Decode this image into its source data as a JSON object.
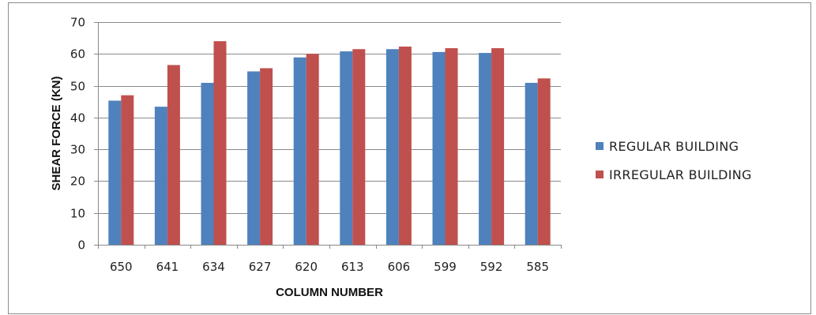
{
  "chart_data": {
    "type": "bar",
    "title": "",
    "xlabel": "COLUMN NUMBER",
    "ylabel": "SHEAR FORCE (KN)",
    "categories": [
      "650",
      "641",
      "634",
      "627",
      "620",
      "613",
      "606",
      "599",
      "592",
      "585"
    ],
    "series": [
      {
        "name": "REGULAR BUILDING",
        "color": "#4F81BD",
        "values": [
          45.3,
          43.4,
          50.9,
          54.5,
          58.9,
          60.8,
          61.5,
          60.6,
          60.3,
          50.9
        ]
      },
      {
        "name": "IRREGULAR BUILDING",
        "color": "#C0504D",
        "values": [
          47.0,
          56.5,
          64.0,
          55.5,
          60.0,
          61.5,
          62.3,
          61.8,
          61.8,
          52.3
        ]
      }
    ],
    "ylim": [
      0,
      70
    ],
    "yticks": [
      "0",
      "10",
      "20",
      "30",
      "40",
      "50",
      "60",
      "70"
    ],
    "grid": true,
    "legend_position": "right"
  }
}
